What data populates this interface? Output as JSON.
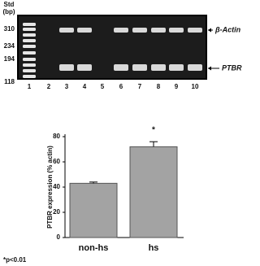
{
  "gel": {
    "std_label": "Std",
    "std_unit": "(bp)",
    "markers": [
      "310",
      "234",
      "194",
      "118"
    ],
    "lanes": [
      "1",
      "2",
      "3",
      "4",
      "5",
      "6",
      "7",
      "8",
      "9",
      "10"
    ],
    "bands": [
      "β-Actin",
      "PTBR"
    ]
  },
  "chart_data": {
    "type": "bar",
    "ylabel": "PTBR expression (% actin)",
    "categories": [
      "non-hs",
      "hs"
    ],
    "values": [
      43,
      72
    ],
    "errors": [
      1,
      4
    ],
    "color": "#a3a3a3",
    "ylim": [
      0,
      80
    ],
    "yticks": [
      0,
      20,
      40,
      60,
      80
    ],
    "annotations": [
      "*"
    ],
    "footnote": "*p<0.01"
  }
}
